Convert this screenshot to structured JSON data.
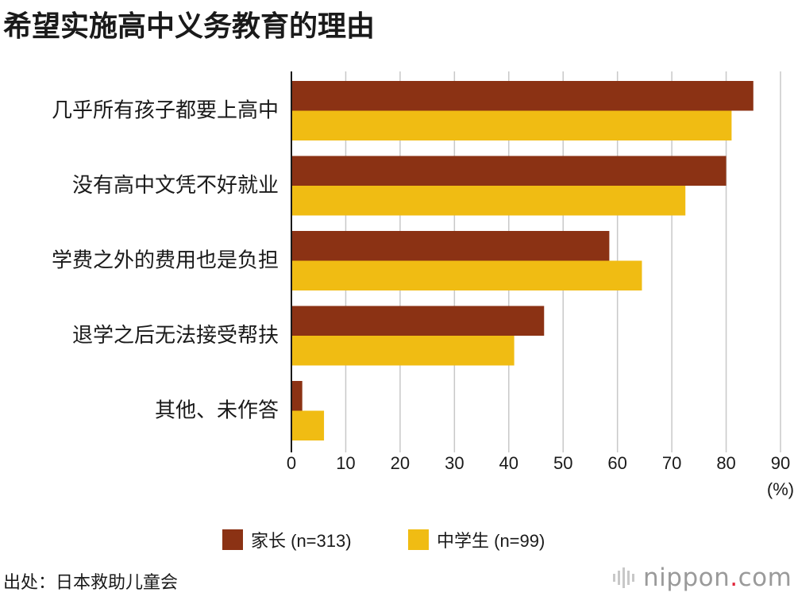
{
  "title": "希望实施高中义务教育的理由",
  "chart_data": {
    "type": "bar",
    "orientation": "horizontal",
    "categories": [
      "几乎所有孩子都要上高中",
      "没有高中文凭不好就业",
      "学费之外的费用也是负担",
      "退学之后无法接受帮扶",
      "其他、未作答"
    ],
    "series": [
      {
        "name": "家长 (n=313)",
        "color": "#8b3214",
        "values": [
          85,
          80,
          58.5,
          46.5,
          2
        ]
      },
      {
        "name": "中学生 (n=99)",
        "color": "#f0bc13",
        "values": [
          81,
          72.5,
          64.5,
          41,
          6
        ]
      }
    ],
    "xlim": [
      0,
      90
    ],
    "xticks": [
      "0",
      "10",
      "20",
      "30",
      "40",
      "50",
      "60",
      "70",
      "80",
      "90"
    ],
    "unit_label": "(%)",
    "grid": true,
    "legend_position": "bottom"
  },
  "legend": [
    {
      "label": "家长 (n=313)",
      "color": "#8b3214"
    },
    {
      "label": "中学生 (n=99)",
      "color": "#f0bc13"
    }
  ],
  "source": "出处：日本救助儿童会",
  "logo": {
    "text_main": "nippon",
    "dot": ".",
    "text_suffix": "com",
    "dot_color": "#e0263b"
  }
}
